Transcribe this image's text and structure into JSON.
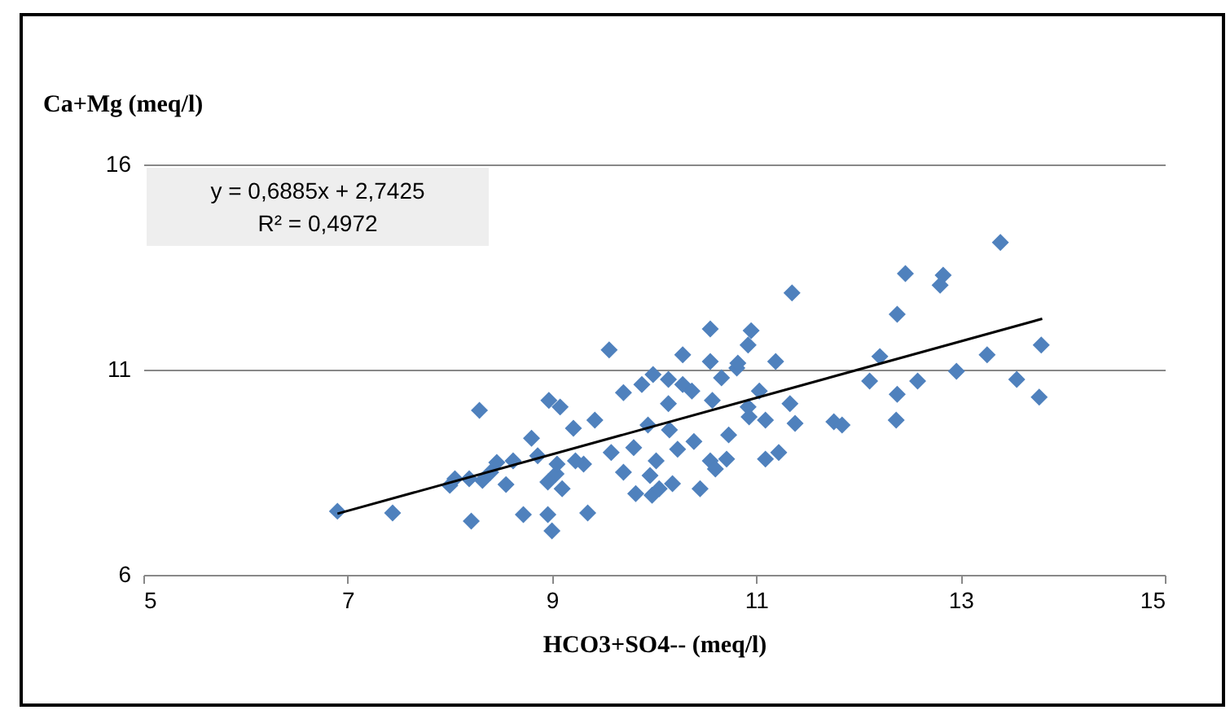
{
  "chart_data": {
    "type": "scatter",
    "ylabel": "Ca+Mg (meq/l)",
    "xlabel": "HCO3+SO4-- (meq/l)",
    "annotations": [
      "y = 0,6885x + 2,7425",
      "R² = 0,4972"
    ],
    "xlim": [
      5,
      15
    ],
    "xticks": [
      5,
      7,
      9,
      11,
      13,
      15
    ],
    "ylim": [
      6,
      16
    ],
    "yticks": [
      6,
      11,
      16
    ],
    "grid": "y",
    "series": [
      {
        "marker": "diamond",
        "color": "#4f81bd",
        "x": [
          6.9,
          7.44,
          8.29,
          8.21,
          8.05,
          8.0,
          8.19,
          8.32,
          8.46,
          8.72,
          8.96,
          9.0,
          9.35,
          8.8,
          8.97,
          9.08,
          9.04,
          8.96,
          9.1,
          9.21,
          9.42,
          9.56,
          9.7,
          9.88,
          9.99,
          10.14,
          9.31,
          9.58,
          9.8,
          10.02,
          10.14,
          10.28,
          10.28,
          10.37,
          10.15,
          9.96,
          10.18,
          10.45,
          9.94,
          10.39,
          10.55,
          10.73,
          10.57,
          10.66,
          10.81,
          10.92,
          11.03,
          11.09,
          11.22,
          10.92,
          10.95,
          10.55,
          10.55,
          10.82,
          11.19,
          11.35,
          11.33,
          11.38,
          11.76,
          11.84,
          12.11,
          12.21,
          12.38,
          12.46,
          12.83,
          12.8,
          12.58,
          12.38,
          12.37,
          12.96,
          13.26,
          13.39,
          13.55,
          13.77,
          13.79,
          10.6,
          10.71,
          11.09,
          8.86,
          8.62,
          9.05,
          9.23,
          9.7,
          9.98,
          10.05,
          10.23,
          9.82,
          10.93,
          8.55,
          8.4
        ],
        "values": [
          7.55,
          7.51,
          10.01,
          7.31,
          8.34,
          8.18,
          8.34,
          8.3,
          8.74,
          7.47,
          7.47,
          7.07,
          7.51,
          9.33,
          10.25,
          10.09,
          8.46,
          8.26,
          8.1,
          9.57,
          9.77,
          11.48,
          10.44,
          10.64,
          10.88,
          10.76,
          8.7,
          8.98,
          9.1,
          8.78,
          10.17,
          11.36,
          10.64,
          10.48,
          9.53,
          8.42,
          8.22,
          8.1,
          9.65,
          9.25,
          8.78,
          9.41,
          10.25,
          10.8,
          11.04,
          10.09,
          10.48,
          9.77,
          8.98,
          11.6,
          11.95,
          11.99,
          11.2,
          11.16,
          11.2,
          12.87,
          10.17,
          9.69,
          9.73,
          9.65,
          10.72,
          11.32,
          12.35,
          13.34,
          13.3,
          13.06,
          10.72,
          10.4,
          9.77,
          10.96,
          11.36,
          14.1,
          10.76,
          10.33,
          11.6,
          8.58,
          8.82,
          8.82,
          8.9,
          8.78,
          8.7,
          8.78,
          8.5,
          7.94,
          8.1,
          9.06,
          7.98,
          9.85,
          8.2,
          8.5
        ]
      },
      {
        "type": "line",
        "color": "#000000",
        "x": [
          6.9,
          13.8
        ],
        "values": [
          7.49,
          12.24
        ]
      }
    ]
  }
}
